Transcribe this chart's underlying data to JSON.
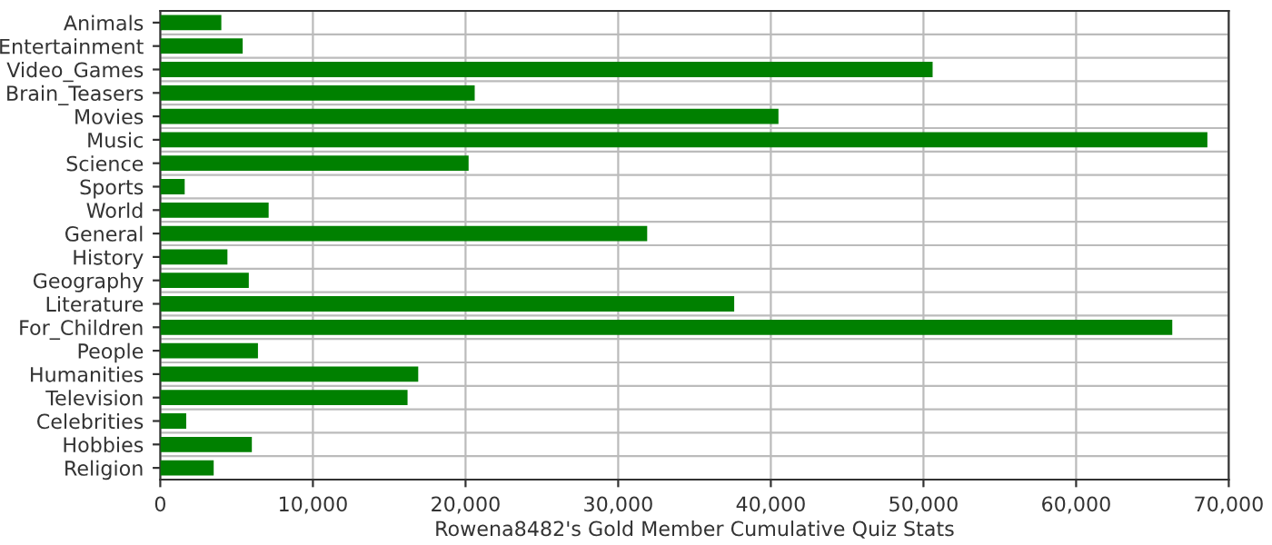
{
  "chart_data": {
    "type": "bar",
    "orientation": "horizontal",
    "xlabel": "Rowena8482's Gold Member Cumulative Quiz Stats",
    "categories": [
      "Animals",
      "Entertainment",
      "Video_Games",
      "Brain_Teasers",
      "Movies",
      "Music",
      "Science",
      "Sports",
      "World",
      "General",
      "History",
      "Geography",
      "Literature",
      "For_Children",
      "People",
      "Humanities",
      "Television",
      "Celebrities",
      "Hobbies",
      "Religion"
    ],
    "values": [
      4000,
      5400,
      50600,
      20600,
      40500,
      68600,
      20200,
      1600,
      7100,
      31900,
      4400,
      5800,
      37600,
      66300,
      6400,
      16900,
      16200,
      1700,
      6000,
      3500
    ],
    "color": "#008000",
    "xlim": [
      0,
      70000
    ],
    "xticks": [
      {
        "value": 0,
        "label": "0"
      },
      {
        "value": 10000,
        "label": "10,000"
      },
      {
        "value": 20000,
        "label": "20,000"
      },
      {
        "value": 30000,
        "label": "30,000"
      },
      {
        "value": 40000,
        "label": "40,000"
      },
      {
        "value": 50000,
        "label": "50,000"
      },
      {
        "value": 60000,
        "label": "60,000"
      },
      {
        "value": 70000,
        "label": "70,000"
      }
    ],
    "grid": true
  }
}
